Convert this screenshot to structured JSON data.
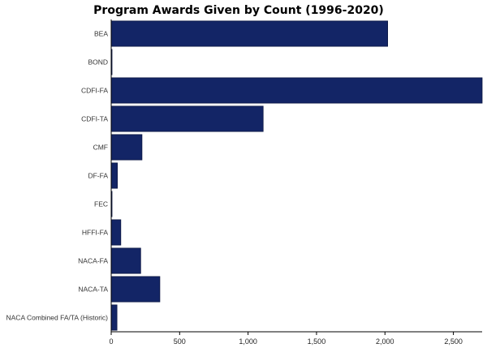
{
  "chart_data": {
    "type": "bar",
    "orientation": "horizontal",
    "title": "Program Awards Given by Count (1996-2020)",
    "xlabel": "",
    "ylabel": "",
    "categories": [
      "BEA",
      "BOND",
      "CDFI-FA",
      "CDFI-TA",
      "CMF",
      "DF-FA",
      "FEC",
      "HFFI-FA",
      "NACA-FA",
      "NACA-TA",
      "NACA Combined FA/TA (Historic)"
    ],
    "values": [
      2020,
      2,
      2710,
      1110,
      225,
      45,
      5,
      70,
      215,
      355,
      42
    ],
    "xlim": [
      0,
      2710
    ],
    "xticks": [
      0,
      500,
      1000,
      1500,
      2000,
      2500
    ],
    "xtick_labels": [
      "0",
      "500",
      "1,000",
      "1,500",
      "2,000",
      "2,500"
    ],
    "grid": false,
    "colors": {
      "bar": "#132566",
      "bar_stroke": "#0a1540",
      "axis": "#000000"
    }
  }
}
